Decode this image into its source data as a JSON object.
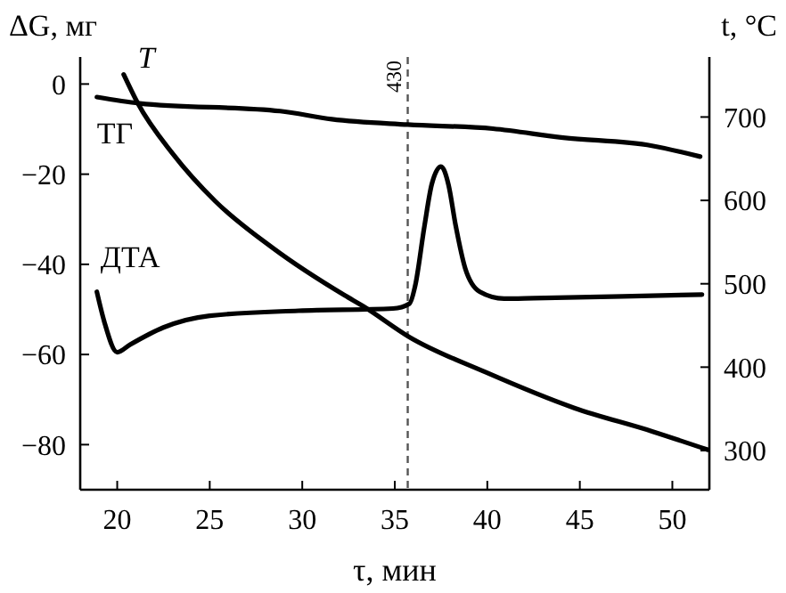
{
  "chart_data": {
    "type": "line",
    "xlabel": "τ, мин",
    "ylabel": "ΔG, мг",
    "y2label": "t, °C",
    "xlim": [
      18,
      52
    ],
    "xticks": [
      20,
      25,
      30,
      35,
      40,
      45,
      50
    ],
    "ylim": [
      -90,
      6
    ],
    "yticks": [
      0,
      -20,
      -40,
      -60,
      -80
    ],
    "y2lim": [
      253,
      772
    ],
    "y2ticks": [
      300,
      400,
      500,
      600,
      700
    ],
    "grid": false,
    "marker": "none",
    "line_style": "solid",
    "ref_lines": [
      {
        "axis": "x",
        "value": 35.7,
        "line_style": "dashed",
        "color": "#555555"
      }
    ],
    "annotations": [
      {
        "text": "430",
        "x": 35.7
      }
    ],
    "series": [
      {
        "name": "T",
        "color": "#000000",
        "axis": "y2",
        "x": [
          20.35,
          21.1,
          23.0,
          25.3,
          28.4,
          32.3,
          33.3,
          35.8,
          39.9,
          44.7,
          48.9,
          51.9
        ],
        "values": [
          751,
          717,
          656,
          599,
          543,
          486,
          473,
          436,
          394,
          351,
          323,
          301
        ]
      },
      {
        "name": "ТГ",
        "color": "#000000",
        "x": [
          18.9,
          21.2,
          28.8,
          31.6,
          35.7,
          40.3,
          44.1,
          48.9,
          51.5
        ],
        "values": [
          -2.9,
          -4.3,
          -6,
          -7.8,
          -9,
          -9.9,
          -11.9,
          -13.7,
          -16.1
        ]
      },
      {
        "name": "ДТА",
        "color": "#000000",
        "x": [
          18.9,
          19.3,
          20.0,
          20.7,
          22.5,
          25.0,
          29.8,
          34.9,
          35.8,
          36.1,
          36.6,
          37.0,
          37.5,
          37.9,
          38.3,
          38.8,
          39.6,
          40.9,
          42.5,
          47.3,
          51.6
        ],
        "values": [
          -46.1,
          -52.7,
          -59.5,
          -57.8,
          -54,
          -51.4,
          -50.3,
          -49.8,
          -48.7,
          -44.8,
          -31.6,
          -22.2,
          -18.3,
          -22.3,
          -31.6,
          -40.8,
          -46.1,
          -47.6,
          -47.5,
          -47.1,
          -46.7
        ]
      }
    ]
  }
}
